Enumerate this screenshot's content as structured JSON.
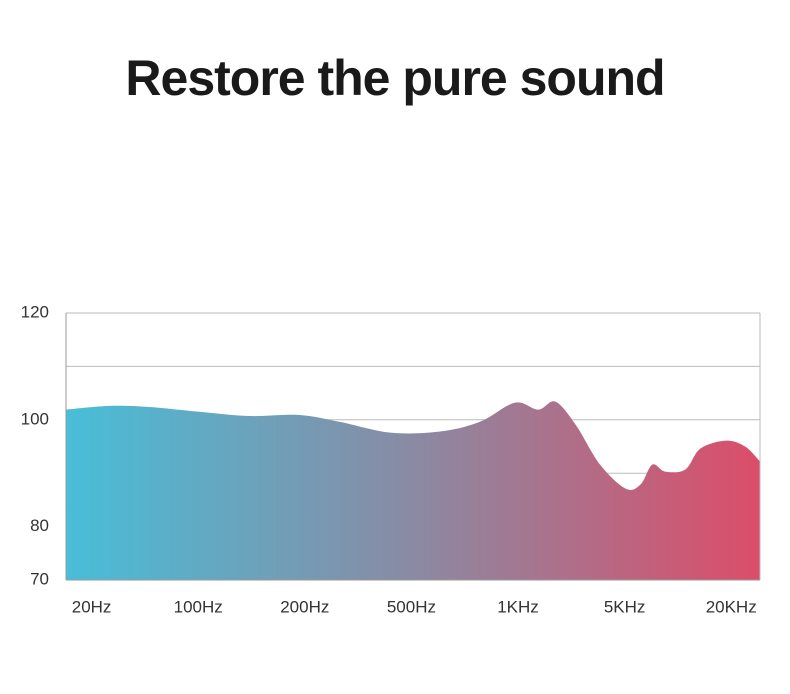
{
  "chart_data": {
    "type": "area",
    "title": "Restore the pure sound",
    "categories": [
      "20Hz",
      "100Hz",
      "200Hz",
      "500Hz",
      "1KHz",
      "5KHz",
      "20KHz"
    ],
    "x": [
      -0.24,
      0.17,
      0.54,
      1.01,
      1.48,
      1.95,
      2.33,
      2.8,
      3.27,
      3.64,
      3.97,
      4.19,
      4.35,
      4.54,
      4.77,
      5.01,
      5.15,
      5.26,
      5.38,
      5.57,
      5.71,
      5.95,
      6.13,
      6.27
    ],
    "values": [
      101.9,
      102.6,
      102.4,
      101.5,
      100.7,
      100.9,
      99.6,
      97.6,
      97.8,
      99.6,
      103.2,
      101.9,
      103.4,
      99.1,
      91.6,
      87.1,
      87.9,
      91.6,
      90.3,
      90.7,
      94.6,
      96.1,
      95.0,
      92.2
    ],
    "colors": [
      "#48bed8",
      "#8a8aa3",
      "#dc4d69"
    ],
    "xlim": [
      -0.24,
      6.27
    ],
    "ylim": [
      70,
      120
    ],
    "yticks": [
      70,
      80,
      100,
      120
    ],
    "gridlines": [
      90,
      100,
      110,
      120
    ],
    "grid": true
  }
}
